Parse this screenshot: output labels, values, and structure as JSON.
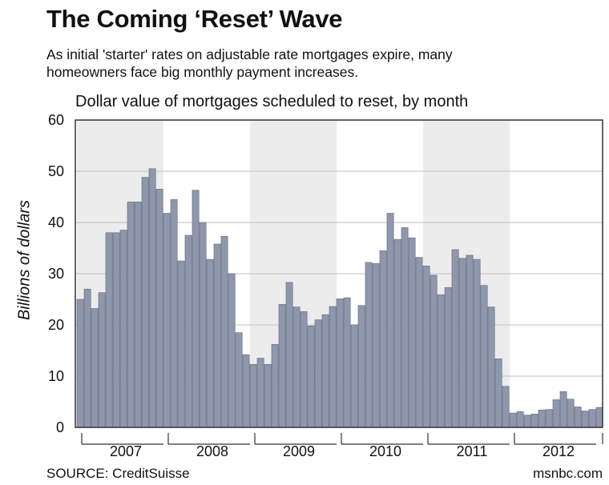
{
  "header": {
    "title": "The Coming ‘Reset’ Wave",
    "subtitle_line1": "As initial 'starter' rates on adjustable rate mortgages expire, many",
    "subtitle_line2": "homeowners face big monthly payment increases."
  },
  "footer": {
    "source": "SOURCE: CreditSuisse",
    "credit": "msnbc.com"
  },
  "colors": {
    "bar_fill": "#8f97ad",
    "bar_stroke": "#5e6678",
    "band_shade": "#ececec",
    "axis": "#333333",
    "grid": "#bfbfbf"
  },
  "chart_data": {
    "type": "bar",
    "title": "Dollar value of mortgages scheduled to reset, by month",
    "xlabel": "",
    "ylabel": "Billions of dollars",
    "ylim": [
      0,
      60
    ],
    "yticks": [
      0,
      10,
      20,
      30,
      40,
      50,
      60
    ],
    "grid": true,
    "years": [
      "2007",
      "2008",
      "2009",
      "2010",
      "2011",
      "2012"
    ],
    "shaded_years": [
      "2007",
      "2009",
      "2011"
    ],
    "series": [
      {
        "values": [
          25.0,
          27.0,
          23.2,
          26.3,
          38.0,
          38.0,
          38.5,
          44.0,
          44.0,
          48.8,
          50.5,
          46.5,
          41.8,
          44.5,
          32.5,
          37.5,
          46.3,
          40.0,
          32.8,
          35.8,
          37.3,
          30.0,
          18.5,
          14.2,
          12.3,
          13.5,
          12.3,
          16.2,
          24.0,
          28.3,
          23.5,
          22.6,
          19.8,
          21.0,
          22.0,
          23.6,
          25.1,
          25.3,
          20.0,
          23.8,
          32.2,
          32.0,
          34.5,
          41.8,
          36.7,
          39.0,
          37.0,
          33.2,
          31.5,
          29.7,
          25.9,
          27.3,
          34.7,
          33.0,
          33.6,
          32.8,
          27.7,
          23.5,
          13.4,
          8.0,
          2.8,
          3.1,
          2.4,
          2.6,
          3.4,
          3.5,
          5.4,
          7.0,
          5.5,
          4.0,
          3.2,
          3.5,
          3.9
        ]
      }
    ]
  }
}
